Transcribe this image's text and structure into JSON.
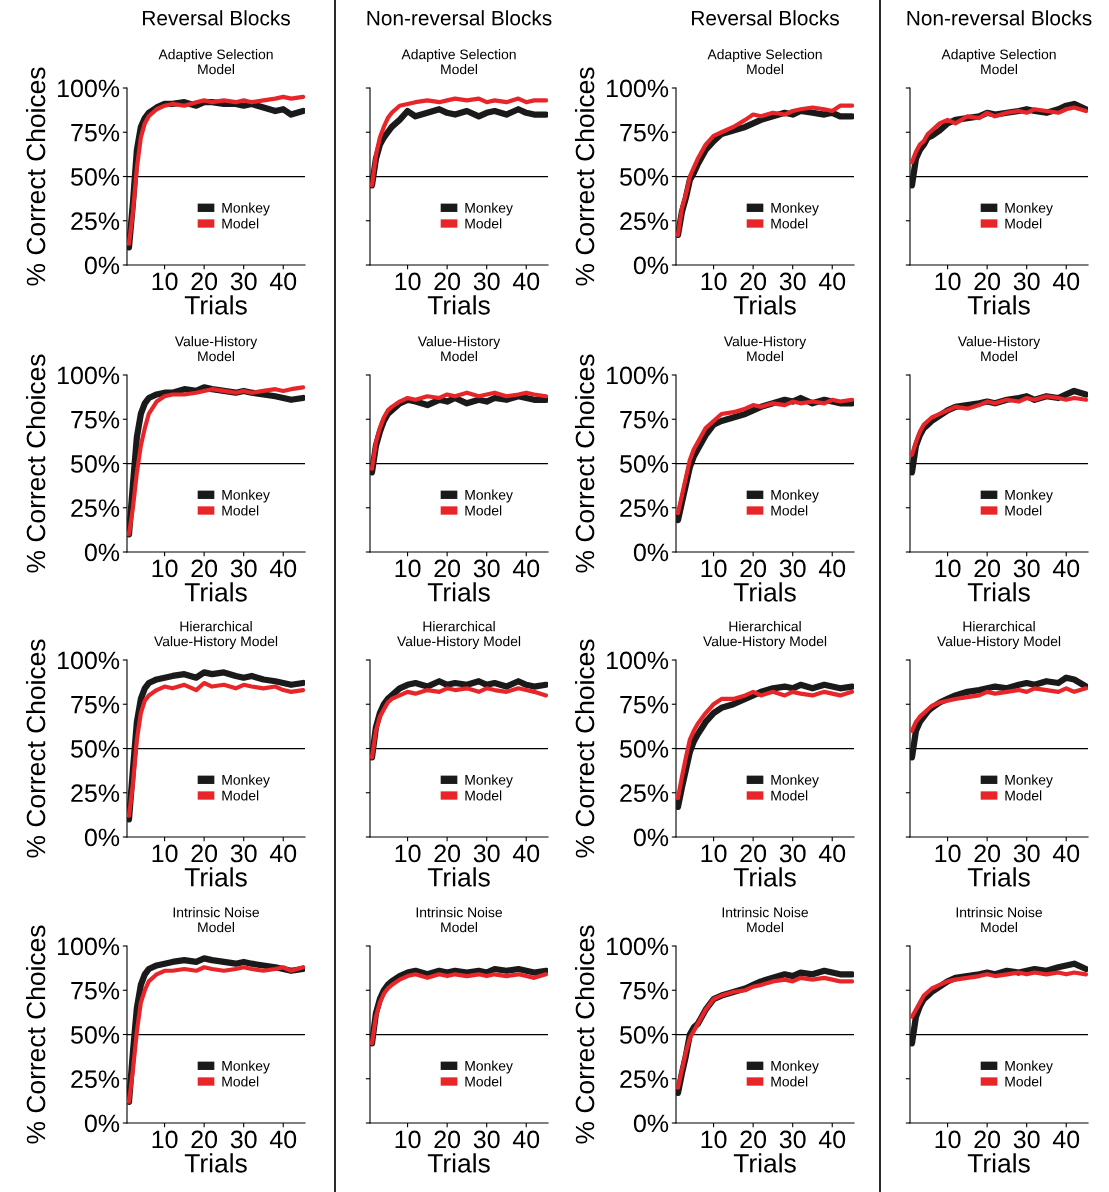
{
  "chart_data": [
    {
      "type": "line",
      "annotations": [
        "Reversal Blocks"
      ],
      "title": "Adaptive Selection\nModel",
      "xlabel": "Trials",
      "ylabel": "% Correct Choices",
      "x": [
        1,
        2,
        3,
        4,
        5,
        6,
        8,
        10,
        12,
        15,
        18,
        20,
        22,
        25,
        28,
        30,
        32,
        35,
        38,
        40,
        42,
        45
      ],
      "xlim": [
        0.5,
        45.5
      ],
      "xticks": [
        10,
        20,
        30,
        40
      ],
      "ylim": [
        0,
        100
      ],
      "yticks": [
        {
          "value": 0,
          "label": "0%"
        },
        {
          "value": 25,
          "label": "25%"
        },
        {
          "value": 50,
          "label": "50%"
        },
        {
          "value": 75,
          "label": "75%"
        },
        {
          "value": 100,
          "label": "100%"
        }
      ],
      "ref_lines": [
        {
          "axis": "y",
          "value": 50,
          "color": "#000000"
        }
      ],
      "legend": "bottom",
      "series": [
        {
          "name": "Monkey",
          "color": "#1a1a1a",
          "values": [
            10,
            35,
            65,
            78,
            83,
            86,
            89,
            91,
            91,
            92,
            90,
            92,
            92,
            91,
            91,
            90,
            91,
            89,
            87,
            88,
            85,
            87
          ]
        },
        {
          "name": "Model",
          "color": "#e8262a",
          "values": [
            12,
            30,
            55,
            72,
            80,
            84,
            88,
            90,
            91,
            90,
            92,
            93,
            92,
            93,
            92,
            93,
            92,
            93,
            94,
            95,
            94,
            95
          ]
        }
      ]
    },
    {
      "type": "line",
      "annotations": [
        "Non-reversal Blocks"
      ],
      "title": "Adaptive Selection\nModel",
      "xlabel": "Trials",
      "x": [
        1,
        2,
        3,
        4,
        5,
        6,
        8,
        10,
        12,
        15,
        18,
        20,
        22,
        25,
        28,
        30,
        32,
        35,
        38,
        40,
        42,
        45
      ],
      "xlim": [
        0.5,
        45.5
      ],
      "xticks": [
        10,
        20,
        30,
        40
      ],
      "ylim": [
        0,
        100
      ],
      "yticks": [
        {
          "value": 0,
          "label": null
        },
        {
          "value": 25,
          "label": null
        },
        {
          "value": 50,
          "label": null
        },
        {
          "value": 75,
          "label": null
        },
        {
          "value": 100,
          "label": null
        }
      ],
      "tick_labels": "x",
      "ref_lines": [
        {
          "axis": "y",
          "value": 50,
          "color": "#000000"
        }
      ],
      "legend": "bottom",
      "series": [
        {
          "name": "Monkey",
          "color": "#1a1a1a",
          "values": [
            45,
            60,
            68,
            72,
            75,
            78,
            82,
            87,
            84,
            86,
            88,
            86,
            85,
            87,
            84,
            86,
            87,
            85,
            88,
            86,
            85,
            85
          ]
        },
        {
          "name": "Model",
          "color": "#e8262a",
          "values": [
            45,
            62,
            72,
            78,
            83,
            86,
            90,
            91,
            92,
            93,
            92,
            93,
            94,
            93,
            94,
            92,
            93,
            92,
            94,
            92,
            93,
            93
          ]
        }
      ]
    },
    {
      "type": "line",
      "annotations": [
        "Reversal Blocks"
      ],
      "title": "Adaptive Selection\nModel",
      "xlabel": "Trials",
      "ylabel": "% Correct Choices",
      "x": [
        1,
        2,
        3,
        4,
        5,
        6,
        8,
        10,
        12,
        15,
        18,
        20,
        22,
        25,
        28,
        30,
        32,
        35,
        38,
        40,
        42,
        45
      ],
      "xlim": [
        0.5,
        45.5
      ],
      "xticks": [
        10,
        20,
        30,
        40
      ],
      "ylim": [
        0,
        100
      ],
      "yticks": [
        {
          "value": 0,
          "label": "0%"
        },
        {
          "value": 25,
          "label": "25%"
        },
        {
          "value": 50,
          "label": "50%"
        },
        {
          "value": 75,
          "label": "75%"
        },
        {
          "value": 100,
          "label": "100%"
        }
      ],
      "ref_lines": [
        {
          "axis": "y",
          "value": 50,
          "color": "#000000"
        }
      ],
      "legend": "bottom",
      "series": [
        {
          "name": "Monkey",
          "color": "#1a1a1a",
          "values": [
            17,
            30,
            38,
            48,
            52,
            57,
            65,
            70,
            74,
            76,
            78,
            80,
            82,
            84,
            86,
            85,
            87,
            86,
            85,
            86,
            84,
            84
          ]
        },
        {
          "name": "Model",
          "color": "#e8262a",
          "values": [
            17,
            32,
            40,
            50,
            55,
            60,
            68,
            73,
            75,
            78,
            82,
            85,
            84,
            86,
            85,
            87,
            88,
            89,
            88,
            87,
            90,
            90
          ]
        }
      ]
    },
    {
      "type": "line",
      "annotations": [
        "Non-reversal Blocks"
      ],
      "title": "Adaptive Selection\nModel",
      "xlabel": "Trials",
      "x": [
        1,
        2,
        3,
        4,
        5,
        6,
        8,
        10,
        12,
        15,
        18,
        20,
        22,
        25,
        28,
        30,
        32,
        35,
        38,
        40,
        42,
        45
      ],
      "xlim": [
        0.5,
        45.5
      ],
      "xticks": [
        10,
        20,
        30,
        40
      ],
      "ylim": [
        0,
        100
      ],
      "yticks": [
        {
          "value": 0,
          "label": null
        },
        {
          "value": 25,
          "label": null
        },
        {
          "value": 50,
          "label": null
        },
        {
          "value": 75,
          "label": null
        },
        {
          "value": 100,
          "label": null
        }
      ],
      "tick_labels": "x",
      "ref_lines": [
        {
          "axis": "y",
          "value": 50,
          "color": "#000000"
        }
      ],
      "legend": "bottom",
      "series": [
        {
          "name": "Monkey",
          "color": "#1a1a1a",
          "values": [
            45,
            60,
            65,
            68,
            72,
            73,
            76,
            80,
            82,
            83,
            84,
            86,
            85,
            86,
            87,
            88,
            87,
            86,
            88,
            90,
            91,
            88
          ]
        },
        {
          "name": "Model",
          "color": "#e8262a",
          "values": [
            58,
            64,
            68,
            70,
            74,
            76,
            80,
            82,
            80,
            84,
            83,
            86,
            84,
            86,
            87,
            86,
            88,
            87,
            86,
            88,
            89,
            87
          ]
        }
      ]
    },
    {
      "type": "line",
      "title": "Value-History\nModel",
      "xlabel": "Trials",
      "ylabel": "% Correct Choices",
      "x": [
        1,
        2,
        3,
        4,
        5,
        6,
        8,
        10,
        12,
        15,
        18,
        20,
        22,
        25,
        28,
        30,
        32,
        35,
        38,
        40,
        42,
        45
      ],
      "xlim": [
        0.5,
        45.5
      ],
      "xticks": [
        10,
        20,
        30,
        40
      ],
      "ylim": [
        0,
        100
      ],
      "yticks": [
        {
          "value": 0,
          "label": "0%"
        },
        {
          "value": 25,
          "label": "25%"
        },
        {
          "value": 50,
          "label": "50%"
        },
        {
          "value": 75,
          "label": "75%"
        },
        {
          "value": 100,
          "label": "100%"
        }
      ],
      "ref_lines": [
        {
          "axis": "y",
          "value": 50,
          "color": "#000000"
        }
      ],
      "legend": "bottom",
      "series": [
        {
          "name": "Monkey",
          "color": "#1a1a1a",
          "values": [
            10,
            38,
            65,
            78,
            84,
            87,
            89,
            90,
            90,
            92,
            91,
            93,
            92,
            91,
            90,
            91,
            90,
            89,
            88,
            87,
            86,
            87
          ]
        },
        {
          "name": "Model",
          "color": "#e8262a",
          "values": [
            10,
            25,
            45,
            60,
            70,
            78,
            85,
            88,
            89,
            89,
            90,
            91,
            92,
            91,
            90,
            91,
            90,
            91,
            92,
            91,
            92,
            93
          ]
        }
      ]
    },
    {
      "type": "line",
      "title": "Value-History\nModel",
      "xlabel": "Trials",
      "x": [
        1,
        2,
        3,
        4,
        5,
        6,
        8,
        10,
        12,
        15,
        18,
        20,
        22,
        25,
        28,
        30,
        32,
        35,
        38,
        40,
        42,
        45
      ],
      "xlim": [
        0.5,
        45.5
      ],
      "xticks": [
        10,
        20,
        30,
        40
      ],
      "ylim": [
        0,
        100
      ],
      "yticks": [
        {
          "value": 0,
          "label": null
        },
        {
          "value": 25,
          "label": null
        },
        {
          "value": 50,
          "label": null
        },
        {
          "value": 75,
          "label": null
        },
        {
          "value": 100,
          "label": null
        }
      ],
      "tick_labels": "x",
      "ref_lines": [
        {
          "axis": "y",
          "value": 50,
          "color": "#000000"
        }
      ],
      "legend": "bottom",
      "series": [
        {
          "name": "Monkey",
          "color": "#1a1a1a",
          "values": [
            45,
            60,
            68,
            74,
            78,
            80,
            84,
            86,
            85,
            83,
            86,
            85,
            87,
            84,
            86,
            85,
            87,
            86,
            88,
            87,
            86,
            86
          ]
        },
        {
          "name": "Model",
          "color": "#e8262a",
          "values": [
            47,
            62,
            70,
            76,
            80,
            82,
            85,
            87,
            86,
            88,
            87,
            89,
            88,
            90,
            88,
            89,
            90,
            88,
            89,
            90,
            89,
            88
          ]
        }
      ]
    },
    {
      "type": "line",
      "title": "Value-History\nModel",
      "xlabel": "Trials",
      "ylabel": "% Correct Choices",
      "x": [
        1,
        2,
        3,
        4,
        5,
        6,
        8,
        10,
        12,
        15,
        18,
        20,
        22,
        25,
        28,
        30,
        32,
        35,
        38,
        40,
        42,
        45
      ],
      "xlim": [
        0.5,
        45.5
      ],
      "xticks": [
        10,
        20,
        30,
        40
      ],
      "ylim": [
        0,
        100
      ],
      "yticks": [
        {
          "value": 0,
          "label": "0%"
        },
        {
          "value": 25,
          "label": "25%"
        },
        {
          "value": 50,
          "label": "50%"
        },
        {
          "value": 75,
          "label": "75%"
        },
        {
          "value": 100,
          "label": "100%"
        }
      ],
      "ref_lines": [
        {
          "axis": "y",
          "value": 50,
          "color": "#000000"
        }
      ],
      "legend": "bottom",
      "series": [
        {
          "name": "Monkey",
          "color": "#1a1a1a",
          "values": [
            18,
            28,
            38,
            48,
            54,
            58,
            66,
            72,
            74,
            76,
            78,
            80,
            82,
            84,
            86,
            85,
            87,
            84,
            86,
            85,
            84,
            84
          ]
        },
        {
          "name": "Model",
          "color": "#e8262a",
          "values": [
            22,
            32,
            42,
            52,
            58,
            62,
            70,
            74,
            78,
            79,
            81,
            83,
            82,
            84,
            83,
            85,
            84,
            85,
            84,
            86,
            85,
            86
          ]
        }
      ]
    },
    {
      "type": "line",
      "title": "Value-History\nModel",
      "xlabel": "Trials",
      "x": [
        1,
        2,
        3,
        4,
        5,
        6,
        8,
        10,
        12,
        15,
        18,
        20,
        22,
        25,
        28,
        30,
        32,
        35,
        38,
        40,
        42,
        45
      ],
      "xlim": [
        0.5,
        45.5
      ],
      "xticks": [
        10,
        20,
        30,
        40
      ],
      "ylim": [
        0,
        100
      ],
      "yticks": [
        {
          "value": 0,
          "label": null
        },
        {
          "value": 25,
          "label": null
        },
        {
          "value": 50,
          "label": null
        },
        {
          "value": 75,
          "label": null
        },
        {
          "value": 100,
          "label": null
        }
      ],
      "tick_labels": "x",
      "ref_lines": [
        {
          "axis": "y",
          "value": 50,
          "color": "#000000"
        }
      ],
      "legend": "bottom",
      "series": [
        {
          "name": "Monkey",
          "color": "#1a1a1a",
          "values": [
            45,
            60,
            66,
            70,
            72,
            74,
            77,
            80,
            82,
            83,
            84,
            85,
            84,
            86,
            87,
            88,
            86,
            88,
            87,
            89,
            91,
            89
          ]
        },
        {
          "name": "Model",
          "color": "#e8262a",
          "values": [
            55,
            62,
            68,
            72,
            74,
            76,
            78,
            80,
            82,
            81,
            83,
            85,
            84,
            86,
            85,
            87,
            86,
            88,
            87,
            86,
            87,
            86
          ]
        }
      ]
    },
    {
      "type": "line",
      "title": "Hierarchical\nValue-History Model",
      "xlabel": "Trials",
      "ylabel": "% Correct Choices",
      "x": [
        1,
        2,
        3,
        4,
        5,
        6,
        8,
        10,
        12,
        15,
        18,
        20,
        22,
        25,
        28,
        30,
        32,
        35,
        38,
        40,
        42,
        45
      ],
      "xlim": [
        0.5,
        45.5
      ],
      "xticks": [
        10,
        20,
        30,
        40
      ],
      "ylim": [
        0,
        100
      ],
      "yticks": [
        {
          "value": 0,
          "label": "0%"
        },
        {
          "value": 25,
          "label": "25%"
        },
        {
          "value": 50,
          "label": "50%"
        },
        {
          "value": 75,
          "label": "75%"
        },
        {
          "value": 100,
          "label": "100%"
        }
      ],
      "ref_lines": [
        {
          "axis": "y",
          "value": 50,
          "color": "#000000"
        }
      ],
      "legend": "bottom",
      "series": [
        {
          "name": "Monkey",
          "color": "#1a1a1a",
          "values": [
            10,
            38,
            65,
            78,
            84,
            87,
            89,
            90,
            91,
            92,
            90,
            93,
            92,
            93,
            91,
            90,
            91,
            89,
            88,
            87,
            86,
            87
          ]
        },
        {
          "name": "Model",
          "color": "#e8262a",
          "values": [
            12,
            30,
            55,
            70,
            77,
            80,
            83,
            85,
            84,
            86,
            83,
            87,
            85,
            86,
            84,
            86,
            85,
            84,
            85,
            83,
            82,
            83
          ]
        }
      ]
    },
    {
      "type": "line",
      "title": "Hierarchical\nValue-History Model",
      "xlabel": "Trials",
      "x": [
        1,
        2,
        3,
        4,
        5,
        6,
        8,
        10,
        12,
        15,
        18,
        20,
        22,
        25,
        28,
        30,
        32,
        35,
        38,
        40,
        42,
        45
      ],
      "xlim": [
        0.5,
        45.5
      ],
      "xticks": [
        10,
        20,
        30,
        40
      ],
      "ylim": [
        0,
        100
      ],
      "yticks": [
        {
          "value": 0,
          "label": null
        },
        {
          "value": 25,
          "label": null
        },
        {
          "value": 50,
          "label": null
        },
        {
          "value": 75,
          "label": null
        },
        {
          "value": 100,
          "label": null
        }
      ],
      "tick_labels": "x",
      "ref_lines": [
        {
          "axis": "y",
          "value": 50,
          "color": "#000000"
        }
      ],
      "legend": "bottom",
      "series": [
        {
          "name": "Monkey",
          "color": "#1a1a1a",
          "values": [
            45,
            62,
            70,
            75,
            78,
            80,
            84,
            86,
            87,
            85,
            88,
            86,
            87,
            86,
            88,
            86,
            87,
            85,
            88,
            86,
            85,
            86
          ]
        },
        {
          "name": "Model",
          "color": "#e8262a",
          "values": [
            45,
            60,
            68,
            72,
            76,
            78,
            80,
            82,
            81,
            83,
            82,
            84,
            83,
            84,
            82,
            84,
            83,
            82,
            84,
            83,
            82,
            80
          ]
        }
      ]
    },
    {
      "type": "line",
      "title": "Hierarchical\nValue-History Model",
      "xlabel": "Trials",
      "ylabel": "% Correct Choices",
      "x": [
        1,
        2,
        3,
        4,
        5,
        6,
        8,
        10,
        12,
        15,
        18,
        20,
        22,
        25,
        28,
        30,
        32,
        35,
        38,
        40,
        42,
        45
      ],
      "xlim": [
        0.5,
        45.5
      ],
      "xticks": [
        10,
        20,
        30,
        40
      ],
      "ylim": [
        0,
        100
      ],
      "yticks": [
        {
          "value": 0,
          "label": "0%"
        },
        {
          "value": 25,
          "label": "25%"
        },
        {
          "value": 50,
          "label": "50%"
        },
        {
          "value": 75,
          "label": "75%"
        },
        {
          "value": 100,
          "label": "100%"
        }
      ],
      "ref_lines": [
        {
          "axis": "y",
          "value": 50,
          "color": "#000000"
        }
      ],
      "legend": "bottom",
      "series": [
        {
          "name": "Monkey",
          "color": "#1a1a1a",
          "values": [
            17,
            28,
            38,
            48,
            54,
            58,
            65,
            70,
            73,
            75,
            78,
            80,
            82,
            84,
            85,
            84,
            86,
            84,
            86,
            85,
            84,
            85
          ]
        },
        {
          "name": "Model",
          "color": "#e8262a",
          "values": [
            22,
            34,
            45,
            55,
            60,
            64,
            70,
            75,
            78,
            78,
            80,
            82,
            80,
            82,
            80,
            82,
            81,
            80,
            82,
            81,
            80,
            82
          ]
        }
      ]
    },
    {
      "type": "line",
      "title": "Hierarchical\nValue-History Model",
      "xlabel": "Trials",
      "x": [
        1,
        2,
        3,
        4,
        5,
        6,
        8,
        10,
        12,
        15,
        18,
        20,
        22,
        25,
        28,
        30,
        32,
        35,
        38,
        40,
        42,
        45
      ],
      "xlim": [
        0.5,
        45.5
      ],
      "xticks": [
        10,
        20,
        30,
        40
      ],
      "ylim": [
        0,
        100
      ],
      "yticks": [
        {
          "value": 0,
          "label": null
        },
        {
          "value": 25,
          "label": null
        },
        {
          "value": 50,
          "label": null
        },
        {
          "value": 75,
          "label": null
        },
        {
          "value": 100,
          "label": null
        }
      ],
      "tick_labels": "x",
      "ref_lines": [
        {
          "axis": "y",
          "value": 50,
          "color": "#000000"
        }
      ],
      "legend": "bottom",
      "series": [
        {
          "name": "Monkey",
          "color": "#1a1a1a",
          "values": [
            45,
            60,
            65,
            68,
            71,
            73,
            76,
            78,
            80,
            82,
            83,
            84,
            85,
            84,
            86,
            87,
            86,
            88,
            87,
            90,
            89,
            85
          ]
        },
        {
          "name": "Model",
          "color": "#e8262a",
          "values": [
            60,
            65,
            68,
            70,
            72,
            74,
            76,
            77,
            78,
            79,
            80,
            82,
            81,
            82,
            83,
            82,
            84,
            83,
            82,
            84,
            82,
            84
          ]
        }
      ]
    },
    {
      "type": "line",
      "title": "Intrinsic Noise\nModel",
      "xlabel": "Trials",
      "ylabel": "% Correct Choices",
      "x": [
        1,
        2,
        3,
        4,
        5,
        6,
        8,
        10,
        12,
        15,
        18,
        20,
        22,
        25,
        28,
        30,
        32,
        35,
        38,
        40,
        42,
        45
      ],
      "xlim": [
        0.5,
        45.5
      ],
      "xticks": [
        10,
        20,
        30,
        40
      ],
      "ylim": [
        0,
        100
      ],
      "yticks": [
        {
          "value": 0,
          "label": "0%"
        },
        {
          "value": 25,
          "label": "25%"
        },
        {
          "value": 50,
          "label": "50%"
        },
        {
          "value": 75,
          "label": "75%"
        },
        {
          "value": 100,
          "label": "100%"
        }
      ],
      "ref_lines": [
        {
          "axis": "y",
          "value": 50,
          "color": "#000000"
        }
      ],
      "legend": "bottom",
      "series": [
        {
          "name": "Monkey",
          "color": "#1a1a1a",
          "values": [
            12,
            40,
            65,
            78,
            84,
            87,
            89,
            90,
            91,
            92,
            91,
            93,
            92,
            91,
            90,
            91,
            90,
            89,
            88,
            87,
            86,
            87
          ]
        },
        {
          "name": "Model",
          "color": "#e8262a",
          "values": [
            12,
            30,
            52,
            68,
            75,
            80,
            84,
            86,
            86,
            87,
            86,
            88,
            87,
            86,
            87,
            88,
            87,
            86,
            87,
            88,
            86,
            88
          ]
        }
      ]
    },
    {
      "type": "line",
      "title": "Intrinsic Noise\nModel",
      "xlabel": "Trials",
      "x": [
        1,
        2,
        3,
        4,
        5,
        6,
        8,
        10,
        12,
        15,
        18,
        20,
        22,
        25,
        28,
        30,
        32,
        35,
        38,
        40,
        42,
        45
      ],
      "xlim": [
        0.5,
        45.5
      ],
      "xticks": [
        10,
        20,
        30,
        40
      ],
      "ylim": [
        0,
        100
      ],
      "yticks": [
        {
          "value": 0,
          "label": null
        },
        {
          "value": 25,
          "label": null
        },
        {
          "value": 50,
          "label": null
        },
        {
          "value": 75,
          "label": null
        },
        {
          "value": 100,
          "label": null
        }
      ],
      "tick_labels": "x",
      "ref_lines": [
        {
          "axis": "y",
          "value": 50,
          "color": "#000000"
        }
      ],
      "legend": "bottom",
      "series": [
        {
          "name": "Monkey",
          "color": "#1a1a1a",
          "values": [
            45,
            62,
            70,
            75,
            78,
            80,
            83,
            85,
            86,
            84,
            86,
            85,
            86,
            85,
            86,
            85,
            87,
            86,
            87,
            86,
            85,
            86
          ]
        },
        {
          "name": "Model",
          "color": "#e8262a",
          "values": [
            45,
            60,
            68,
            73,
            76,
            78,
            81,
            83,
            84,
            82,
            84,
            83,
            84,
            83,
            84,
            83,
            84,
            83,
            84,
            83,
            82,
            84
          ]
        }
      ]
    },
    {
      "type": "line",
      "title": "Intrinsic Noise\nModel",
      "xlabel": "Trials",
      "ylabel": "% Correct Choices",
      "x": [
        1,
        2,
        3,
        4,
        5,
        6,
        8,
        10,
        12,
        15,
        18,
        20,
        22,
        25,
        28,
        30,
        32,
        35,
        38,
        40,
        42,
        45
      ],
      "xlim": [
        0.5,
        45.5
      ],
      "xticks": [
        10,
        20,
        30,
        40
      ],
      "ylim": [
        0,
        100
      ],
      "yticks": [
        {
          "value": 0,
          "label": "0%"
        },
        {
          "value": 25,
          "label": "25%"
        },
        {
          "value": 50,
          "label": "50%"
        },
        {
          "value": 75,
          "label": "75%"
        },
        {
          "value": 100,
          "label": "100%"
        }
      ],
      "ref_lines": [
        {
          "axis": "y",
          "value": 50,
          "color": "#000000"
        }
      ],
      "legend": "bottom",
      "series": [
        {
          "name": "Monkey",
          "color": "#1a1a1a",
          "values": [
            17,
            28,
            38,
            50,
            54,
            56,
            64,
            70,
            72,
            74,
            76,
            78,
            80,
            82,
            84,
            83,
            85,
            84,
            86,
            85,
            84,
            84
          ]
        },
        {
          "name": "Model",
          "color": "#e8262a",
          "values": [
            20,
            30,
            40,
            48,
            52,
            56,
            64,
            70,
            72,
            74,
            75,
            77,
            78,
            80,
            81,
            80,
            82,
            81,
            82,
            81,
            80,
            80
          ]
        }
      ]
    },
    {
      "type": "line",
      "title": "Intrinsic Noise\nModel",
      "xlabel": "Trials",
      "x": [
        1,
        2,
        3,
        4,
        5,
        6,
        8,
        10,
        12,
        15,
        18,
        20,
        22,
        25,
        28,
        30,
        32,
        35,
        38,
        40,
        42,
        45
      ],
      "xlim": [
        0.5,
        45.5
      ],
      "xticks": [
        10,
        20,
        30,
        40
      ],
      "ylim": [
        0,
        100
      ],
      "yticks": [
        {
          "value": 0,
          "label": null
        },
        {
          "value": 25,
          "label": null
        },
        {
          "value": 50,
          "label": null
        },
        {
          "value": 75,
          "label": null
        },
        {
          "value": 100,
          "label": null
        }
      ],
      "tick_labels": "x",
      "ref_lines": [
        {
          "axis": "y",
          "value": 50,
          "color": "#000000"
        }
      ],
      "legend": "bottom",
      "series": [
        {
          "name": "Monkey",
          "color": "#1a1a1a",
          "values": [
            45,
            60,
            66,
            70,
            72,
            74,
            77,
            80,
            82,
            83,
            84,
            85,
            84,
            86,
            85,
            86,
            87,
            86,
            88,
            89,
            90,
            87
          ]
        },
        {
          "name": "Model",
          "color": "#e8262a",
          "values": [
            60,
            64,
            68,
            72,
            74,
            76,
            78,
            80,
            81,
            82,
            83,
            84,
            83,
            84,
            85,
            84,
            85,
            84,
            85,
            84,
            85,
            84
          ]
        }
      ]
    }
  ]
}
